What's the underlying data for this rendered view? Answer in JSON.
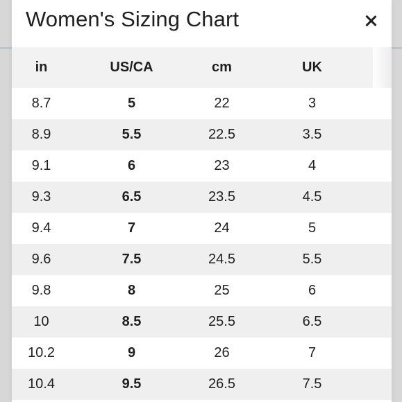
{
  "modal": {
    "title": "Women's Sizing Chart",
    "close_icon_name": "close-icon"
  },
  "table": {
    "headers": [
      "in",
      "US/CA",
      "cm",
      "UK"
    ],
    "rows": [
      {
        "in": "8.7",
        "us_ca": "5",
        "cm": "22",
        "uk": "3"
      },
      {
        "in": "8.9",
        "us_ca": "5.5",
        "cm": "22.5",
        "uk": "3.5"
      },
      {
        "in": "9.1",
        "us_ca": "6",
        "cm": "23",
        "uk": "4"
      },
      {
        "in": "9.3",
        "us_ca": "6.5",
        "cm": "23.5",
        "uk": "4.5"
      },
      {
        "in": "9.4",
        "us_ca": "7",
        "cm": "24",
        "uk": "5"
      },
      {
        "in": "9.6",
        "us_ca": "7.5",
        "cm": "24.5",
        "uk": "5.5"
      },
      {
        "in": "9.8",
        "us_ca": "8",
        "cm": "25",
        "uk": "6"
      },
      {
        "in": "10",
        "us_ca": "8.5",
        "cm": "25.5",
        "uk": "6.5"
      },
      {
        "in": "10.2",
        "us_ca": "9",
        "cm": "26",
        "uk": "7"
      },
      {
        "in": "10.4",
        "us_ca": "9.5",
        "cm": "26.5",
        "uk": "7.5"
      }
    ]
  },
  "colors": {
    "modal_background": "#ffffff",
    "header_background": "#f2f2f2",
    "striped_row_background": "#efefef",
    "text": "#1f1f1f",
    "backdrop": "#d7d7d7"
  }
}
